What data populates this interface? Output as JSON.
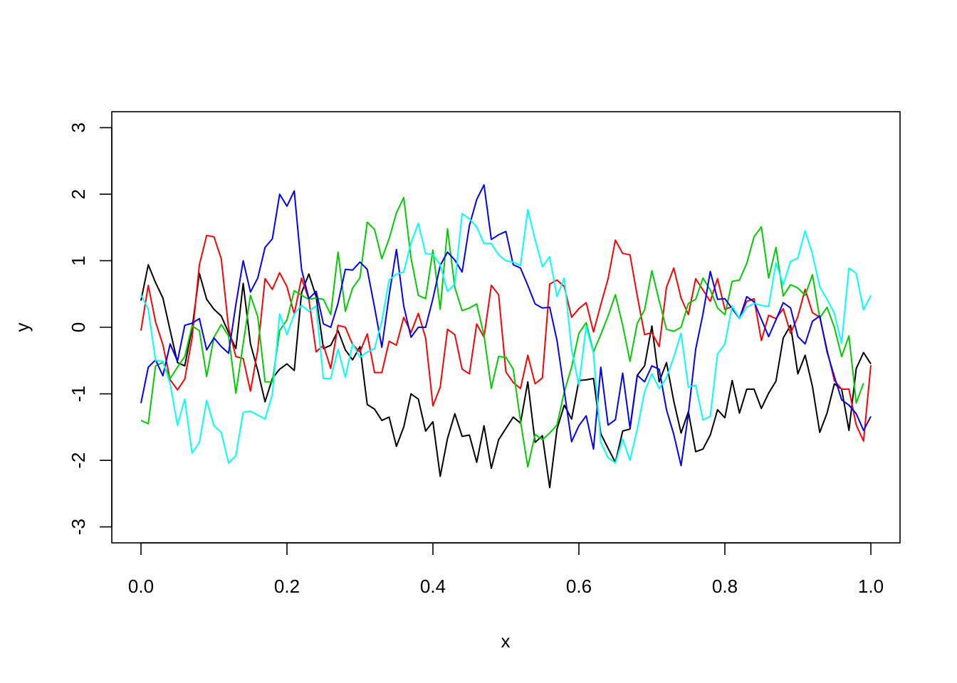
{
  "chart_data": {
    "type": "line",
    "title": "",
    "xlabel": "x",
    "ylabel": "y",
    "xlim": [
      -0.04,
      1.04
    ],
    "ylim": [
      -3.24,
      3.24
    ],
    "x_ticks": [
      "0.0",
      "0.2",
      "0.4",
      "0.6",
      "0.8",
      "1.0"
    ],
    "y_ticks": [
      "-3",
      "-2",
      "-1",
      "0",
      "1",
      "2",
      "3"
    ],
    "grid": false,
    "legend": "none",
    "x": {
      "start": 0,
      "end": 1,
      "step": 0.01
    },
    "series": [
      {
        "color": "#000000",
        "values": [
          0.4,
          0.94,
          0.67,
          0.44,
          -0.05,
          -0.53,
          -0.58,
          -0.02,
          0.81,
          0.42,
          0.27,
          0.17,
          -0.08,
          -0.32,
          0.66,
          -0.25,
          -0.65,
          -1.12,
          -0.77,
          -0.63,
          -0.55,
          -0.65,
          0.52,
          0.8,
          0.46,
          -0.32,
          -0.27,
          -0.05,
          -0.34,
          -0.49,
          -0.29,
          -1.16,
          -1.23,
          -1.4,
          -1.35,
          -1.79,
          -1.5,
          -1.0,
          -1.08,
          -1.56,
          -1.42,
          -2.24,
          -1.67,
          -1.3,
          -1.64,
          -1.62,
          -2.03,
          -1.48,
          -2.12,
          -1.69,
          -1.52,
          -1.35,
          -1.44,
          -0.82,
          -1.73,
          -1.63,
          -2.41,
          -1.53,
          -1.17,
          -1.38,
          -0.8,
          -0.79,
          -0.77,
          -1.6,
          -1.82,
          -2.03,
          -1.56,
          -1.53,
          -0.72,
          -0.58,
          0.02,
          -0.82,
          -0.53,
          -1.11,
          -1.59,
          -1.27,
          -1.87,
          -1.83,
          -1.62,
          -1.24,
          -1.36,
          -0.8,
          -1.29,
          -0.93,
          -0.93,
          -1.22,
          -0.99,
          -0.81,
          -0.16,
          0.03,
          -0.7,
          -0.42,
          -0.89,
          -1.58,
          -1.29,
          -0.85,
          -0.93,
          -1.55,
          -0.62,
          -0.38,
          -0.55
        ]
      },
      {
        "color": "#ff0000",
        "values": [
          -0.05,
          0.63,
          0.08,
          -0.26,
          -0.79,
          -0.94,
          -0.78,
          -0.16,
          0.94,
          1.38,
          1.36,
          1.03,
          -0.01,
          -0.44,
          -0.47,
          -0.96,
          -0.34,
          0.73,
          0.57,
          0.82,
          0.61,
          0.2,
          0.74,
          0.42,
          -0.37,
          -0.27,
          -0.62,
          0.03,
          0.0,
          -0.26,
          -0.37,
          -0.1,
          -0.68,
          -0.68,
          -0.21,
          -0.27,
          0.15,
          -0.08,
          0.21,
          -0.16,
          -1.18,
          -0.9,
          -0.03,
          -0.11,
          -0.63,
          -0.7,
          0.05,
          -0.15,
          0.63,
          0.49,
          -0.67,
          -0.83,
          -0.92,
          -0.42,
          -0.85,
          -0.76,
          0.65,
          0.71,
          0.61,
          0.15,
          0.28,
          0.37,
          -0.07,
          0.34,
          0.73,
          1.31,
          1.11,
          1.09,
          0.47,
          -0.11,
          -0.08,
          -0.29,
          0.6,
          0.89,
          0.44,
          0.19,
          0.73,
          0.56,
          0.39,
          0.73,
          0.27,
          0.31,
          0.13,
          0.39,
          0.43,
          -0.2,
          0.18,
          0.13,
          0.28,
          -0.09,
          0.16,
          0.57,
          0.22,
          0.15,
          -0.34,
          -0.8,
          -0.93,
          -0.93,
          -1.47,
          -1.71,
          -0.57
        ]
      },
      {
        "color": "#00cd00",
        "values": [
          -1.4,
          -1.45,
          -0.58,
          -0.53,
          -0.77,
          -0.6,
          -0.44,
          0.02,
          -0.05,
          -0.74,
          -0.15,
          0.04,
          -0.13,
          -0.99,
          -0.25,
          0.48,
          0.16,
          -0.82,
          -0.82,
          -0.05,
          0.11,
          0.55,
          0.48,
          0.42,
          0.44,
          0.42,
          0.19,
          1.13,
          0.24,
          0.59,
          0.74,
          1.58,
          1.47,
          1.03,
          1.33,
          1.72,
          1.95,
          1.04,
          0.48,
          0.43,
          1.16,
          0.27,
          1.48,
          0.6,
          0.25,
          0.29,
          0.35,
          -0.12,
          -0.92,
          -0.44,
          -0.45,
          -0.63,
          -1.41,
          -2.1,
          -1.61,
          -1.69,
          -1.59,
          -1.47,
          -0.97,
          -0.6,
          -0.09,
          0.07,
          -0.37,
          -0.11,
          0.17,
          0.49,
          0.03,
          -0.51,
          0.06,
          0.26,
          0.85,
          0.4,
          -0.03,
          -0.06,
          0.0,
          0.36,
          0.42,
          0.74,
          0.56,
          0.29,
          0.19,
          0.69,
          0.71,
          0.96,
          1.36,
          1.51,
          0.74,
          1.2,
          0.47,
          0.64,
          0.59,
          0.48,
          0.79,
          0.14,
          0.3,
          0.0,
          -0.44,
          -0.13,
          -1.14,
          -0.84
        ]
      },
      {
        "color": "#0000ff",
        "values": [
          -1.14,
          -0.6,
          -0.49,
          -0.73,
          -0.25,
          -0.51,
          0.03,
          0.06,
          0.13,
          -0.34,
          -0.16,
          -0.29,
          -0.39,
          0.34,
          1.0,
          0.53,
          0.74,
          1.2,
          1.33,
          2.0,
          1.82,
          2.05,
          0.87,
          0.43,
          0.54,
          0.05,
          0.0,
          0.36,
          0.87,
          0.86,
          0.98,
          0.87,
          0.3,
          -0.3,
          0.48,
          1.17,
          0.32,
          -0.15,
          0.0,
          0.0,
          0.43,
          0.93,
          1.13,
          1.01,
          0.83,
          1.53,
          1.92,
          2.14,
          1.32,
          1.39,
          1.44,
          0.94,
          0.89,
          0.63,
          0.35,
          0.29,
          0.3,
          -0.2,
          -0.96,
          -1.72,
          -1.48,
          -1.33,
          -1.83,
          -0.6,
          -1.47,
          -1.39,
          -0.69,
          -1.51,
          -0.72,
          -0.82,
          -0.58,
          -0.63,
          -1.24,
          -1.61,
          -2.08,
          -1.3,
          -0.33,
          0.2,
          0.84,
          0.42,
          0.43,
          0.28,
          0.13,
          0.46,
          0.38,
          0.12,
          -0.14,
          0.11,
          0.37,
          0.29,
          -0.14,
          -0.25,
          0.09,
          0.17,
          -0.37,
          -0.74,
          -1.09,
          -1.17,
          -1.3,
          -1.55,
          -1.34
        ]
      },
      {
        "color": "#00ffff",
        "values": [
          0.49,
          0.27,
          -0.5,
          -0.51,
          -0.85,
          -1.47,
          -1.08,
          -1.89,
          -1.73,
          -1.1,
          -1.48,
          -1.58,
          -2.04,
          -1.93,
          -1.28,
          -1.26,
          -1.32,
          -1.38,
          -1.01,
          0.2,
          -0.11,
          0.2,
          0.33,
          0.24,
          0.32,
          -0.77,
          -0.77,
          -0.33,
          -0.75,
          -0.25,
          -0.45,
          -0.37,
          -0.32,
          0.09,
          0.71,
          0.8,
          0.83,
          1.27,
          1.56,
          1.11,
          1.09,
          0.94,
          0.54,
          0.65,
          1.71,
          1.63,
          1.51,
          1.26,
          1.26,
          1.09,
          1.0,
          0.98,
          0.93,
          1.77,
          1.32,
          0.91,
          1.06,
          0.46,
          0.74,
          -0.33,
          -0.87,
          0.01,
          -0.39,
          -1.73,
          -1.96,
          -2.04,
          -1.68,
          -2.0,
          -1.53,
          -0.97,
          -0.7,
          -0.92,
          -0.76,
          -0.45,
          -0.09,
          -0.9,
          -0.87,
          -1.39,
          -1.34,
          -0.4,
          -0.25,
          0.32,
          0.13,
          0.3,
          0.36,
          0.33,
          0.31,
          0.97,
          0.64,
          0.99,
          1.04,
          1.45,
          1.1,
          0.61,
          0.42,
          0.21,
          -0.24,
          0.89,
          0.81,
          0.26,
          0.48
        ]
      }
    ]
  }
}
